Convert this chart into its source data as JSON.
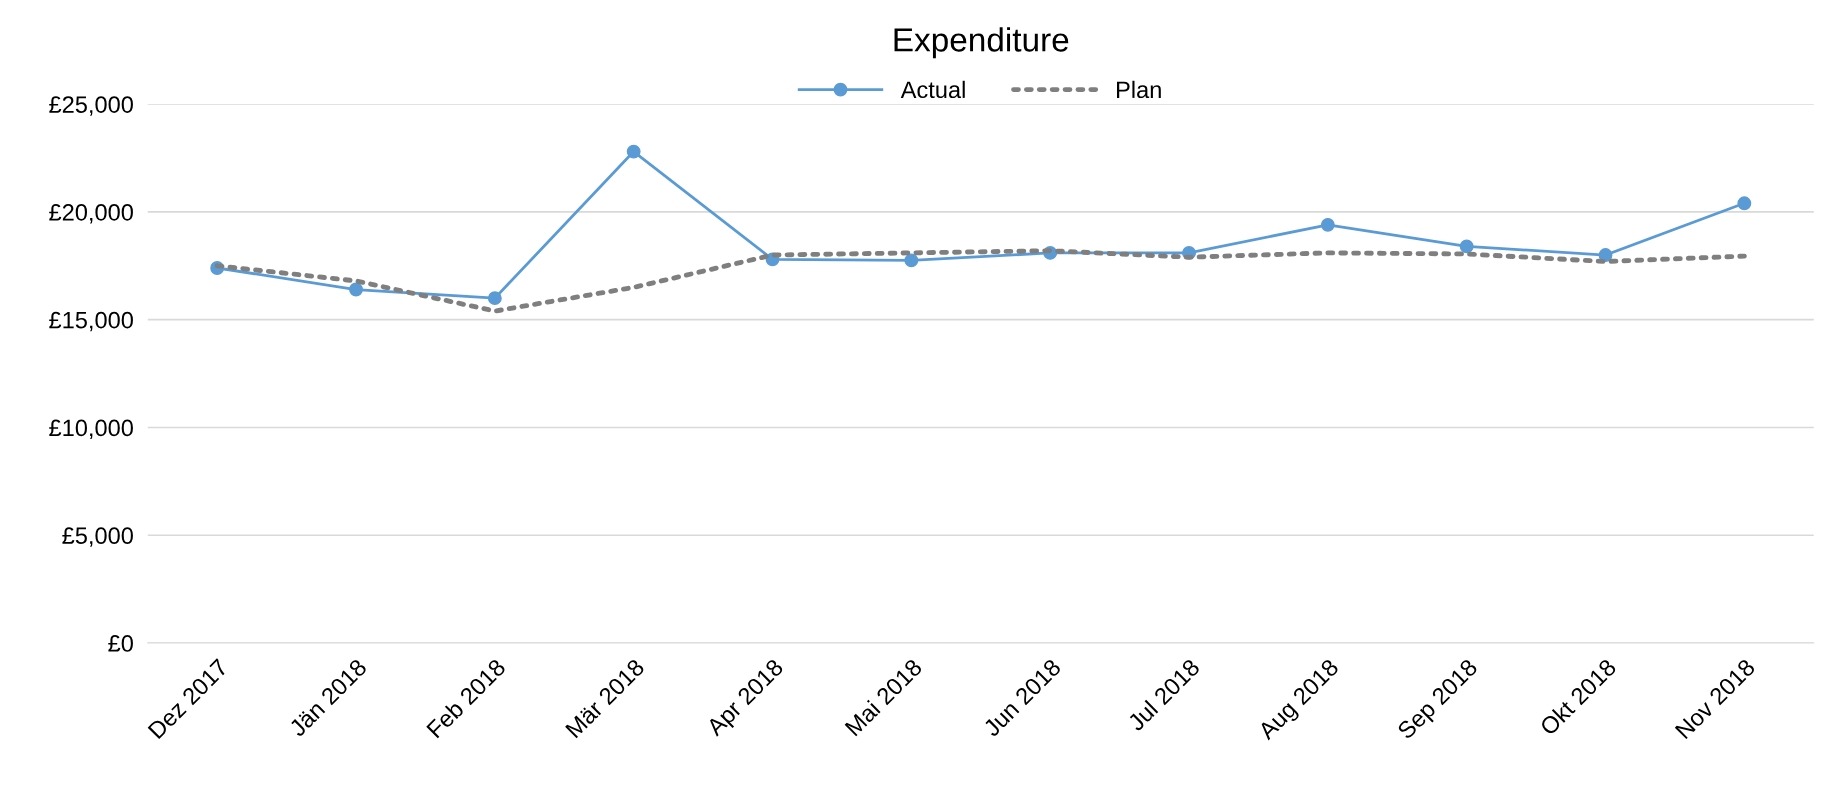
{
  "chart_data": {
    "type": "line",
    "title": "Expenditure",
    "categories": [
      "Dez 2017",
      "Jän 2018",
      "Feb 2018",
      "Mär 2018",
      "Apr 2018",
      "Mai 2018",
      "Jun 2018",
      "Jul 2018",
      "Aug 2018",
      "Sep 2018",
      "Okt 2018",
      "Nov 2018"
    ],
    "series": [
      {
        "name": "Actual",
        "color": "#5b9bd5",
        "marker": "circle",
        "line_style": "solid",
        "values": [
          17400,
          16400,
          16000,
          22800,
          17800,
          17750,
          18100,
          18100,
          19400,
          18400,
          18000,
          20400
        ]
      },
      {
        "name": "Plan",
        "color": "#7f7f7f",
        "marker": "none",
        "line_style": "dotted",
        "values": [
          17500,
          16800,
          15400,
          16500,
          18000,
          18100,
          18200,
          17900,
          18100,
          18050,
          17700,
          17950
        ]
      }
    ],
    "ylim": [
      0,
      25000
    ],
    "yticks": [
      {
        "value": 0,
        "label": "£0"
      },
      {
        "value": 5000,
        "label": "£5,000"
      },
      {
        "value": 10000,
        "label": "£10,000"
      },
      {
        "value": 15000,
        "label": "£15,000"
      },
      {
        "value": 20000,
        "label": "£20,000"
      },
      {
        "value": 25000,
        "label": "£25,000"
      }
    ],
    "grid": "y",
    "legend": "top"
  }
}
